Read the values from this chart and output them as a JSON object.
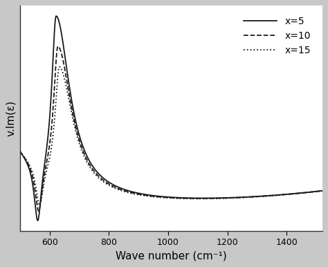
{
  "title": "",
  "xlabel": "Wave number (cm⁻¹)",
  "ylabel": "v.Im(ε)",
  "xlim": [
    500,
    1520
  ],
  "ylim_auto": true,
  "xticks": [
    600,
    800,
    1000,
    1200,
    1400
  ],
  "background_color": "#c8c8c8",
  "plot_bg": "#ffffff",
  "legend_labels": [
    "x=5",
    "x=10",
    "x=15"
  ],
  "line_styles": [
    "-",
    "--",
    ":"
  ],
  "line_color": "#1a1a1a",
  "line_width": 1.3,
  "legend_fontsize": 10,
  "axis_fontsize": 11
}
